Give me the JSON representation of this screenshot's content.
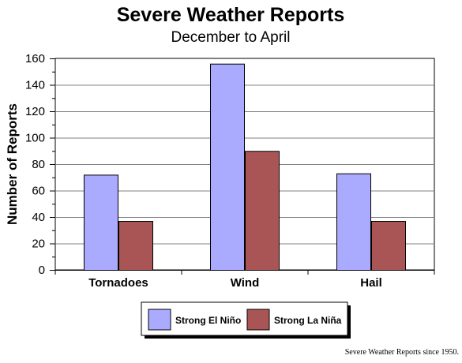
{
  "chart_data": {
    "type": "bar",
    "title": "Severe Weather Reports",
    "subtitle": "December to April",
    "xlabel": "",
    "ylabel": "Number of Reports",
    "categories": [
      "Tornadoes",
      "Wind",
      "Hail"
    ],
    "series": [
      {
        "name": "Strong El Niño",
        "values": [
          72,
          156,
          73
        ],
        "color": "#aaaaff"
      },
      {
        "name": "Strong La Niña",
        "values": [
          37,
          90,
          37
        ],
        "color": "#aa5555"
      }
    ],
    "ylim": [
      0,
      160
    ],
    "yticks": [
      0,
      20,
      40,
      60,
      80,
      100,
      120,
      140,
      160
    ],
    "grid": true,
    "legend_position": "bottom-center",
    "footnote": "Severe Weather Reports since 1950."
  }
}
